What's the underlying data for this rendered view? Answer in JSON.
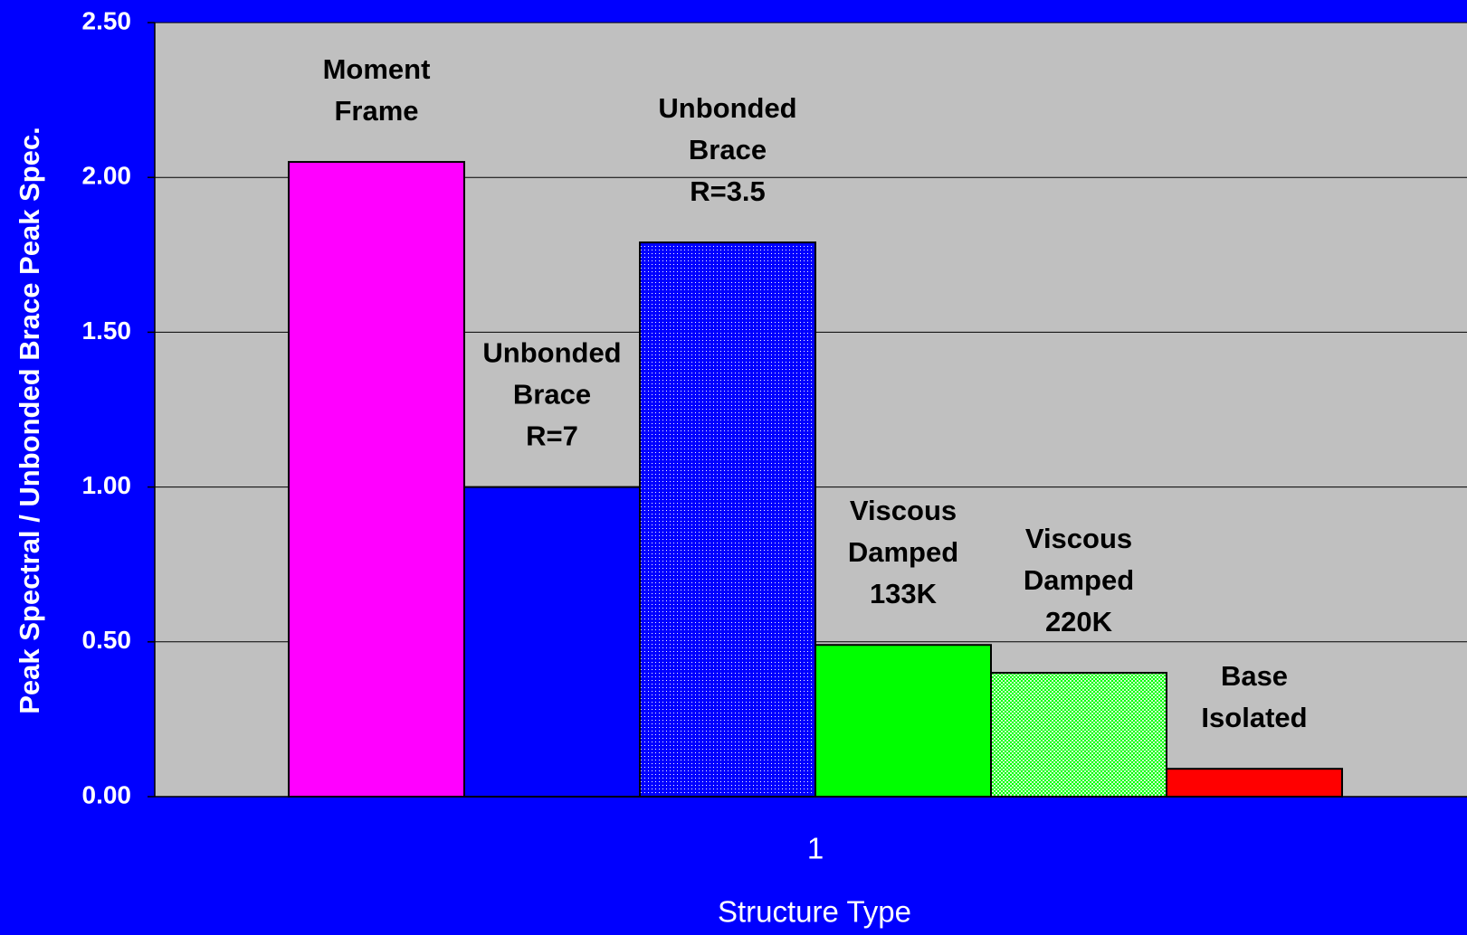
{
  "chart_data": {
    "type": "bar",
    "y_label": "Peak Spectral  / Unbonded Brace Peak Spec.",
    "x_label": "Structure Type",
    "categories": [
      "1"
    ],
    "series": [
      {
        "name": "Moment Frame",
        "color": "#ff00ff",
        "values": [
          2.05
        ]
      },
      {
        "name": "Unbonded Brace R=7",
        "color": "#0000ff",
        "values": [
          1.0
        ]
      },
      {
        "name": "Unbonded Brace R=3.5",
        "color": "#0000ff",
        "pattern": "dotted",
        "values": [
          1.79
        ]
      },
      {
        "name": "Viscous Damped 133K",
        "color": "#00ff00",
        "values": [
          0.49
        ]
      },
      {
        "name": "Viscous Damped 220K",
        "color": "#00ff00",
        "pattern": "dotted",
        "values": [
          0.4
        ]
      },
      {
        "name": "Base Isolated",
        "color": "#ff0000",
        "values": [
          0.09
        ]
      }
    ],
    "ylim": [
      0,
      2.5
    ],
    "yticks": [
      {
        "value": 0,
        "label": "0.00"
      },
      {
        "value": 0.5,
        "label": "0.50"
      },
      {
        "value": 1,
        "label": "1.00"
      },
      {
        "value": 1.5,
        "label": "1.50"
      },
      {
        "value": 2,
        "label": "2.00"
      },
      {
        "value": 2.5,
        "label": "2.50"
      }
    ],
    "grid": true
  }
}
